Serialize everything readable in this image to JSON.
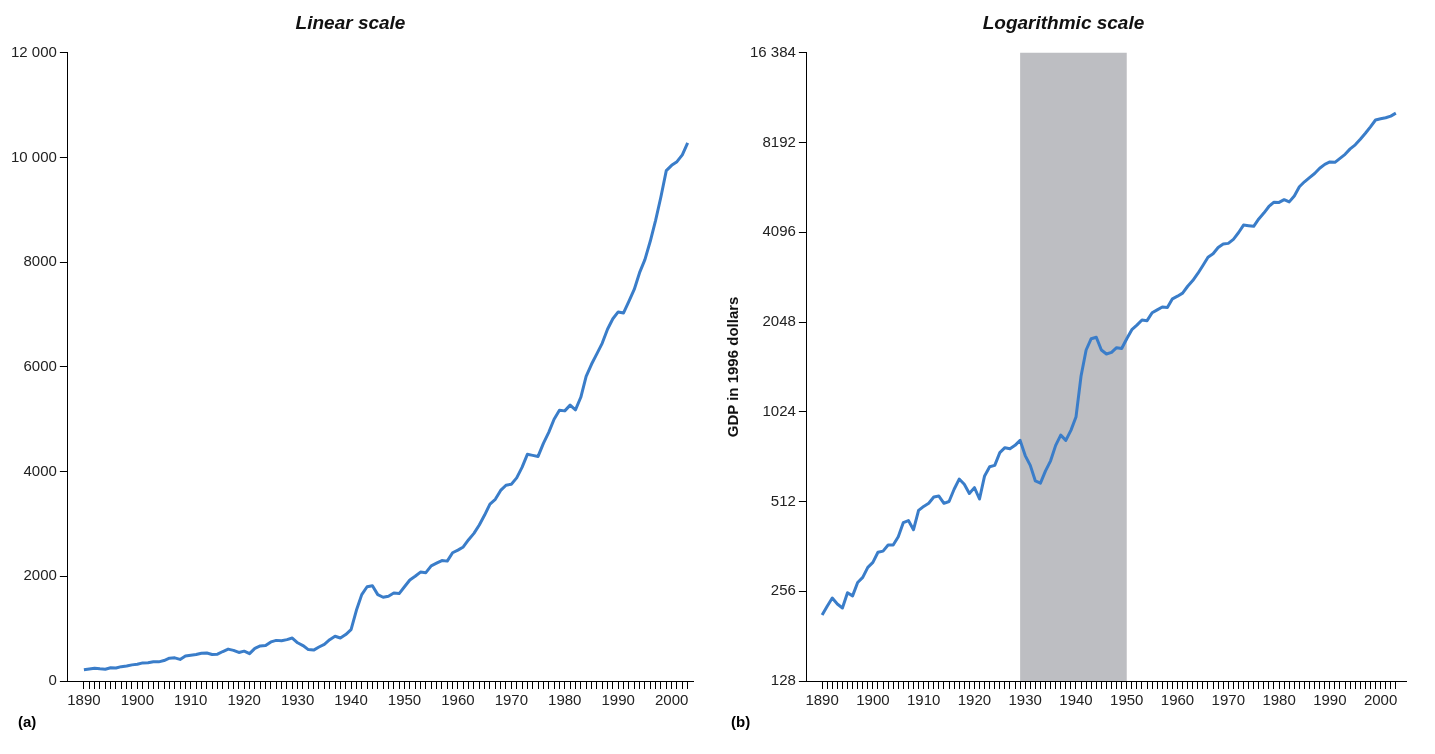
{
  "chart_data": [
    {
      "type": "line",
      "title": "Linear scale",
      "annotations": [
        "(a)"
      ],
      "color": "#3a7dc9",
      "marker": "none",
      "grid": false,
      "x": [
        1890,
        1891,
        1892,
        1893,
        1894,
        1895,
        1896,
        1897,
        1898,
        1899,
        1900,
        1901,
        1902,
        1903,
        1904,
        1905,
        1906,
        1907,
        1908,
        1909,
        1910,
        1911,
        1912,
        1913,
        1914,
        1915,
        1916,
        1917,
        1918,
        1919,
        1920,
        1921,
        1922,
        1923,
        1924,
        1925,
        1926,
        1927,
        1928,
        1929,
        1930,
        1931,
        1932,
        1933,
        1934,
        1935,
        1936,
        1937,
        1938,
        1939,
        1940,
        1941,
        1942,
        1943,
        1944,
        1945,
        1946,
        1947,
        1948,
        1949,
        1950,
        1951,
        1952,
        1953,
        1954,
        1955,
        1956,
        1957,
        1958,
        1959,
        1960,
        1961,
        1962,
        1963,
        1964,
        1965,
        1966,
        1967,
        1968,
        1969,
        1970,
        1971,
        1972,
        1973,
        1974,
        1975,
        1976,
        1977,
        1978,
        1979,
        1980,
        1981,
        1982,
        1983,
        1984,
        1985,
        1986,
        1987,
        1988,
        1989,
        1990,
        1991,
        1992,
        1993,
        1994,
        1995,
        1996,
        1997,
        1998,
        1999,
        2000,
        2001,
        2002,
        2003
      ],
      "values": [
        213,
        228,
        243,
        232,
        225,
        253,
        247,
        274,
        285,
        308,
        320,
        346,
        349,
        366,
        366,
        390,
        435,
        442,
        412,
        478,
        493,
        505,
        530,
        534,
        505,
        512,
        563,
        609,
        585,
        545,
        570,
        522,
        624,
        670,
        677,
        747,
        776,
        770,
        790,
        821,
        730,
        677,
        600,
        590,
        649,
        701,
        790,
        855,
        821,
        887,
        983,
        1350,
        1650,
        1800,
        1820,
        1650,
        1600,
        1620,
        1680,
        1670,
        1800,
        1930,
        2000,
        2080,
        2070,
        2200,
        2250,
        2300,
        2290,
        2450,
        2500,
        2560,
        2700,
        2820,
        2980,
        3170,
        3380,
        3470,
        3640,
        3740,
        3760,
        3880,
        4080,
        4330,
        4310,
        4290,
        4540,
        4750,
        5000,
        5170,
        5160,
        5270,
        5180,
        5420,
        5820,
        6050,
        6250,
        6450,
        6720,
        6920,
        7050,
        7030,
        7250,
        7480,
        7800,
        8050,
        8400,
        8800,
        9250,
        9750,
        9850,
        9920,
        10050,
        10280
      ],
      "xlim": [
        1887,
        2004
      ],
      "ylim": [
        0,
        12000
      ],
      "yticks": [
        0,
        2000,
        4000,
        6000,
        8000,
        {
          "value": 10000,
          "label": "10 000"
        },
        {
          "value": 12000,
          "label": "12 000"
        }
      ],
      "xticks": [
        1890,
        {
          "value": 1891,
          "label": null
        },
        {
          "value": 1892,
          "label": null
        },
        {
          "value": 1893,
          "label": null
        },
        {
          "value": 1894,
          "label": null
        },
        {
          "value": 1895,
          "label": null
        },
        {
          "value": 1896,
          "label": null
        },
        {
          "value": 1897,
          "label": null
        },
        {
          "value": 1898,
          "label": null
        },
        {
          "value": 1899,
          "label": null
        },
        1900,
        {
          "value": 1901,
          "label": null
        },
        {
          "value": 1902,
          "label": null
        },
        {
          "value": 1903,
          "label": null
        },
        {
          "value": 1904,
          "label": null
        },
        {
          "value": 1905,
          "label": null
        },
        {
          "value": 1906,
          "label": null
        },
        {
          "value": 1907,
          "label": null
        },
        {
          "value": 1908,
          "label": null
        },
        {
          "value": 1909,
          "label": null
        },
        1910,
        {
          "value": 1911,
          "label": null
        },
        {
          "value": 1912,
          "label": null
        },
        {
          "value": 1913,
          "label": null
        },
        {
          "value": 1914,
          "label": null
        },
        {
          "value": 1915,
          "label": null
        },
        {
          "value": 1916,
          "label": null
        },
        {
          "value": 1917,
          "label": null
        },
        {
          "value": 1918,
          "label": null
        },
        {
          "value": 1919,
          "label": null
        },
        1920,
        {
          "value": 1921,
          "label": null
        },
        {
          "value": 1922,
          "label": null
        },
        {
          "value": 1923,
          "label": null
        },
        {
          "value": 1924,
          "label": null
        },
        {
          "value": 1925,
          "label": null
        },
        {
          "value": 1926,
          "label": null
        },
        {
          "value": 1927,
          "label": null
        },
        {
          "value": 1928,
          "label": null
        },
        {
          "value": 1929,
          "label": null
        },
        1930,
        {
          "value": 1931,
          "label": null
        },
        {
          "value": 1932,
          "label": null
        },
        {
          "value": 1933,
          "label": null
        },
        {
          "value": 1934,
          "label": null
        },
        {
          "value": 1935,
          "label": null
        },
        {
          "value": 1936,
          "label": null
        },
        {
          "value": 1937,
          "label": null
        },
        {
          "value": 1938,
          "label": null
        },
        {
          "value": 1939,
          "label": null
        },
        1940,
        {
          "value": 1941,
          "label": null
        },
        {
          "value": 1942,
          "label": null
        },
        {
          "value": 1943,
          "label": null
        },
        {
          "value": 1944,
          "label": null
        },
        {
          "value": 1945,
          "label": null
        },
        {
          "value": 1946,
          "label": null
        },
        {
          "value": 1947,
          "label": null
        },
        {
          "value": 1948,
          "label": null
        },
        {
          "value": 1949,
          "label": null
        },
        1950,
        {
          "value": 1951,
          "label": null
        },
        {
          "value": 1952,
          "label": null
        },
        {
          "value": 1953,
          "label": null
        },
        {
          "value": 1954,
          "label": null
        },
        {
          "value": 1955,
          "label": null
        },
        {
          "value": 1956,
          "label": null
        },
        {
          "value": 1957,
          "label": null
        },
        {
          "value": 1958,
          "label": null
        },
        {
          "value": 1959,
          "label": null
        },
        1960,
        {
          "value": 1961,
          "label": null
        },
        {
          "value": 1962,
          "label": null
        },
        {
          "value": 1963,
          "label": null
        },
        {
          "value": 1964,
          "label": null
        },
        {
          "value": 1965,
          "label": null
        },
        {
          "value": 1966,
          "label": null
        },
        {
          "value": 1967,
          "label": null
        },
        {
          "value": 1968,
          "label": null
        },
        {
          "value": 1969,
          "label": null
        },
        1970,
        {
          "value": 1971,
          "label": null
        },
        {
          "value": 1972,
          "label": null
        },
        {
          "value": 1973,
          "label": null
        },
        {
          "value": 1974,
          "label": null
        },
        {
          "value": 1975,
          "label": null
        },
        {
          "value": 1976,
          "label": null
        },
        {
          "value": 1977,
          "label": null
        },
        {
          "value": 1978,
          "label": null
        },
        {
          "value": 1979,
          "label": null
        },
        1980,
        {
          "value": 1981,
          "label": null
        },
        {
          "value": 1982,
          "label": null
        },
        {
          "value": 1983,
          "label": null
        },
        {
          "value": 1984,
          "label": null
        },
        {
          "value": 1985,
          "label": null
        },
        {
          "value": 1986,
          "label": null
        },
        {
          "value": 1987,
          "label": null
        },
        {
          "value": 1988,
          "label": null
        },
        {
          "value": 1989,
          "label": null
        },
        1990,
        {
          "value": 1991,
          "label": null
        },
        {
          "value": 1992,
          "label": null
        },
        {
          "value": 1993,
          "label": null
        },
        {
          "value": 1994,
          "label": null
        },
        {
          "value": 1995,
          "label": null
        },
        {
          "value": 1996,
          "label": null
        },
        {
          "value": 1997,
          "label": null
        },
        {
          "value": 1998,
          "label": null
        },
        {
          "value": 1999,
          "label": null
        },
        2000,
        {
          "value": 2001,
          "label": null
        },
        {
          "value": 2002,
          "label": null
        },
        {
          "value": 2003,
          "label": null
        }
      ]
    },
    {
      "type": "line",
      "title": "Logarithmic scale",
      "ylabel": "GDP in 1996 dollars",
      "annotations": [
        "(b)"
      ],
      "color": "#3a7dc9",
      "marker": "none",
      "grid": false,
      "log": "y",
      "bands": [
        {
          "axis": "x",
          "from": 1929,
          "to": 1950,
          "color": "#bdbec2"
        }
      ],
      "x": [
        1890,
        1891,
        1892,
        1893,
        1894,
        1895,
        1896,
        1897,
        1898,
        1899,
        1900,
        1901,
        1902,
        1903,
        1904,
        1905,
        1906,
        1907,
        1908,
        1909,
        1910,
        1911,
        1912,
        1913,
        1914,
        1915,
        1916,
        1917,
        1918,
        1919,
        1920,
        1921,
        1922,
        1923,
        1924,
        1925,
        1926,
        1927,
        1928,
        1929,
        1930,
        1931,
        1932,
        1933,
        1934,
        1935,
        1936,
        1937,
        1938,
        1939,
        1940,
        1941,
        1942,
        1943,
        1944,
        1945,
        1946,
        1947,
        1948,
        1949,
        1950,
        1951,
        1952,
        1953,
        1954,
        1955,
        1956,
        1957,
        1958,
        1959,
        1960,
        1961,
        1962,
        1963,
        1964,
        1965,
        1966,
        1967,
        1968,
        1969,
        1970,
        1971,
        1972,
        1973,
        1974,
        1975,
        1976,
        1977,
        1978,
        1979,
        1980,
        1981,
        1982,
        1983,
        1984,
        1985,
        1986,
        1987,
        1988,
        1989,
        1990,
        1991,
        1992,
        1993,
        1994,
        1995,
        1996,
        1997,
        1998,
        1999,
        2000,
        2001,
        2002,
        2003
      ],
      "values": [
        213,
        228,
        243,
        232,
        225,
        253,
        247,
        274,
        285,
        308,
        320,
        346,
        349,
        366,
        366,
        390,
        435,
        442,
        412,
        478,
        493,
        505,
        530,
        534,
        505,
        512,
        563,
        609,
        585,
        545,
        570,
        522,
        624,
        670,
        677,
        747,
        776,
        770,
        790,
        821,
        730,
        677,
        600,
        590,
        649,
        701,
        790,
        855,
        821,
        887,
        983,
        1350,
        1650,
        1800,
        1820,
        1650,
        1600,
        1620,
        1680,
        1670,
        1800,
        1930,
        2000,
        2080,
        2070,
        2200,
        2250,
        2300,
        2290,
        2450,
        2500,
        2560,
        2700,
        2820,
        2980,
        3170,
        3380,
        3470,
        3640,
        3740,
        3760,
        3880,
        4080,
        4330,
        4310,
        4290,
        4540,
        4750,
        5000,
        5170,
        5160,
        5270,
        5180,
        5420,
        5820,
        6050,
        6250,
        6450,
        6720,
        6920,
        7050,
        7030,
        7250,
        7480,
        7800,
        8050,
        8400,
        8800,
        9250,
        9750,
        9850,
        9920,
        10050,
        10280
      ],
      "xlim": [
        1887,
        2005
      ],
      "ylim": [
        128,
        16384
      ],
      "yticks": [
        128,
        256,
        512,
        1024,
        2048,
        4096,
        8192,
        {
          "value": 16384,
          "label": "16 384"
        }
      ],
      "xticks": [
        1890,
        {
          "value": 1891,
          "label": null
        },
        {
          "value": 1892,
          "label": null
        },
        {
          "value": 1893,
          "label": null
        },
        {
          "value": 1894,
          "label": null
        },
        {
          "value": 1895,
          "label": null
        },
        {
          "value": 1896,
          "label": null
        },
        {
          "value": 1897,
          "label": null
        },
        {
          "value": 1898,
          "label": null
        },
        {
          "value": 1899,
          "label": null
        },
        1900,
        {
          "value": 1901,
          "label": null
        },
        {
          "value": 1902,
          "label": null
        },
        {
          "value": 1903,
          "label": null
        },
        {
          "value": 1904,
          "label": null
        },
        {
          "value": 1905,
          "label": null
        },
        {
          "value": 1906,
          "label": null
        },
        {
          "value": 1907,
          "label": null
        },
        {
          "value": 1908,
          "label": null
        },
        {
          "value": 1909,
          "label": null
        },
        1910,
        {
          "value": 1911,
          "label": null
        },
        {
          "value": 1912,
          "label": null
        },
        {
          "value": 1913,
          "label": null
        },
        {
          "value": 1914,
          "label": null
        },
        {
          "value": 1915,
          "label": null
        },
        {
          "value": 1916,
          "label": null
        },
        {
          "value": 1917,
          "label": null
        },
        {
          "value": 1918,
          "label": null
        },
        {
          "value": 1919,
          "label": null
        },
        1920,
        {
          "value": 1921,
          "label": null
        },
        {
          "value": 1922,
          "label": null
        },
        {
          "value": 1923,
          "label": null
        },
        {
          "value": 1924,
          "label": null
        },
        {
          "value": 1925,
          "label": null
        },
        {
          "value": 1926,
          "label": null
        },
        {
          "value": 1927,
          "label": null
        },
        {
          "value": 1928,
          "label": null
        },
        {
          "value": 1929,
          "label": null
        },
        1930,
        {
          "value": 1931,
          "label": null
        },
        {
          "value": 1932,
          "label": null
        },
        {
          "value": 1933,
          "label": null
        },
        {
          "value": 1934,
          "label": null
        },
        {
          "value": 1935,
          "label": null
        },
        {
          "value": 1936,
          "label": null
        },
        {
          "value": 1937,
          "label": null
        },
        {
          "value": 1938,
          "label": null
        },
        {
          "value": 1939,
          "label": null
        },
        1940,
        {
          "value": 1941,
          "label": null
        },
        {
          "value": 1942,
          "label": null
        },
        {
          "value": 1943,
          "label": null
        },
        {
          "value": 1944,
          "label": null
        },
        {
          "value": 1945,
          "label": null
        },
        {
          "value": 1946,
          "label": null
        },
        {
          "value": 1947,
          "label": null
        },
        {
          "value": 1948,
          "label": null
        },
        {
          "value": 1949,
          "label": null
        },
        1950,
        {
          "value": 1951,
          "label": null
        },
        {
          "value": 1952,
          "label": null
        },
        {
          "value": 1953,
          "label": null
        },
        {
          "value": 1954,
          "label": null
        },
        {
          "value": 1955,
          "label": null
        },
        {
          "value": 1956,
          "label": null
        },
        {
          "value": 1957,
          "label": null
        },
        {
          "value": 1958,
          "label": null
        },
        {
          "value": 1959,
          "label": null
        },
        1960,
        {
          "value": 1961,
          "label": null
        },
        {
          "value": 1962,
          "label": null
        },
        {
          "value": 1963,
          "label": null
        },
        {
          "value": 1964,
          "label": null
        },
        {
          "value": 1965,
          "label": null
        },
        {
          "value": 1966,
          "label": null
        },
        {
          "value": 1967,
          "label": null
        },
        {
          "value": 1968,
          "label": null
        },
        {
          "value": 1969,
          "label": null
        },
        1970,
        {
          "value": 1971,
          "label": null
        },
        {
          "value": 1972,
          "label": null
        },
        {
          "value": 1973,
          "label": null
        },
        {
          "value": 1974,
          "label": null
        },
        {
          "value": 1975,
          "label": null
        },
        {
          "value": 1976,
          "label": null
        },
        {
          "value": 1977,
          "label": null
        },
        {
          "value": 1978,
          "label": null
        },
        {
          "value": 1979,
          "label": null
        },
        1980,
        {
          "value": 1981,
          "label": null
        },
        {
          "value": 1982,
          "label": null
        },
        {
          "value": 1983,
          "label": null
        },
        {
          "value": 1984,
          "label": null
        },
        {
          "value": 1985,
          "label": null
        },
        {
          "value": 1986,
          "label": null
        },
        {
          "value": 1987,
          "label": null
        },
        {
          "value": 1988,
          "label": null
        },
        {
          "value": 1989,
          "label": null
        },
        1990,
        {
          "value": 1991,
          "label": null
        },
        {
          "value": 1992,
          "label": null
        },
        {
          "value": 1993,
          "label": null
        },
        {
          "value": 1994,
          "label": null
        },
        {
          "value": 1995,
          "label": null
        },
        {
          "value": 1996,
          "label": null
        },
        {
          "value": 1997,
          "label": null
        },
        {
          "value": 1998,
          "label": null
        },
        {
          "value": 1999,
          "label": null
        },
        2000,
        {
          "value": 2001,
          "label": null
        },
        {
          "value": 2002,
          "label": null
        },
        {
          "value": 2003,
          "label": null
        }
      ]
    }
  ]
}
